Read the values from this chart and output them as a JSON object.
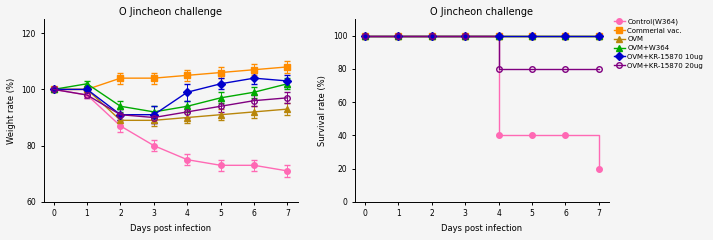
{
  "title": "O Jincheon challenge",
  "days": [
    0,
    1,
    2,
    3,
    4,
    5,
    6,
    7
  ],
  "weight": {
    "Control(W364)": [
      100,
      98,
      87,
      80,
      75,
      73,
      73,
      71
    ],
    "Commerial vac.": [
      100,
      100,
      104,
      104,
      105,
      106,
      107,
      108
    ],
    "OVM": [
      100,
      100,
      89,
      89,
      90,
      91,
      92,
      93
    ],
    "OVM+W364": [
      100,
      102,
      94,
      92,
      94,
      97,
      99,
      102
    ],
    "OVM+KR-15870 10ug": [
      100,
      100,
      91,
      91,
      99,
      102,
      104,
      103
    ],
    "OVM+KR-15870 20ug": [
      100,
      98,
      91,
      90,
      92,
      94,
      96,
      97
    ]
  },
  "weight_err": {
    "Control(W364)": [
      0,
      1,
      2,
      2,
      2,
      2,
      2,
      2
    ],
    "Commerial vac.": [
      0,
      1,
      2,
      2,
      2,
      2,
      2,
      2
    ],
    "OVM": [
      0,
      1,
      2,
      2,
      2,
      2,
      2,
      2
    ],
    "OVM+W364": [
      0,
      1,
      2,
      2,
      2,
      2,
      2,
      2
    ],
    "OVM+KR-15870 10ug": [
      0,
      1,
      2,
      3,
      3,
      2,
      2,
      2
    ],
    "OVM+KR-15870 20ug": [
      0,
      1,
      2,
      2,
      2,
      2,
      2,
      2
    ]
  },
  "survival_days": [
    0,
    1,
    2,
    3,
    4,
    5,
    6,
    7
  ],
  "survival": {
    "Control(W364)": [
      100,
      100,
      100,
      100,
      40,
      40,
      40,
      20
    ],
    "Commerial vac.": [
      100,
      100,
      100,
      100,
      100,
      100,
      100,
      100
    ],
    "OVM": [
      100,
      100,
      100,
      100,
      100,
      100,
      100,
      100
    ],
    "OVM+W364": [
      100,
      100,
      100,
      100,
      100,
      100,
      100,
      100
    ],
    "OVM+KR-15870 10ug": [
      100,
      100,
      100,
      100,
      100,
      100,
      100,
      100
    ],
    "OVM+KR-15870 20ug": [
      100,
      100,
      100,
      100,
      80,
      80,
      80,
      80
    ]
  },
  "colors": {
    "Control(W364)": "#FF69B4",
    "Commerial vac.": "#FF8C00",
    "OVM": "#B8860B",
    "OVM+W364": "#00AA00",
    "OVM+KR-15870 10ug": "#0000CC",
    "OVM+KR-15870 20ug": "#800080"
  },
  "markers": {
    "Control(W364)": "o",
    "Commerial vac.": "s",
    "OVM": "^",
    "OVM+W364": "^",
    "OVM+KR-15870 10ug": "D",
    "OVM+KR-15870 20ug": "o"
  },
  "markerfacecolors": {
    "Control(W364)": "#FF69B4",
    "Commerial vac.": "#FF8C00",
    "OVM": "#B8860B",
    "OVM+W364": "#00AA00",
    "OVM+KR-15870 10ug": "#0000CC",
    "OVM+KR-15870 20ug": "none"
  },
  "legend_labels": [
    "Control(W364)",
    "Commerial vac.",
    "OVM",
    "OVM+W364",
    "OVM+KR-15870 10ug",
    "OVM+KR-15870 20ug"
  ],
  "weight_ylim": [
    60,
    125
  ],
  "weight_yticks": [
    60,
    80,
    100,
    120
  ],
  "survival_ylim": [
    0,
    110
  ],
  "survival_yticks": [
    0,
    20,
    40,
    60,
    80,
    100
  ],
  "xlabel": "Days post infection",
  "ylabel_weight": "Weight rate (%)",
  "ylabel_survival": "Survival rate (%)",
  "bg_color": "#F5F5F5"
}
